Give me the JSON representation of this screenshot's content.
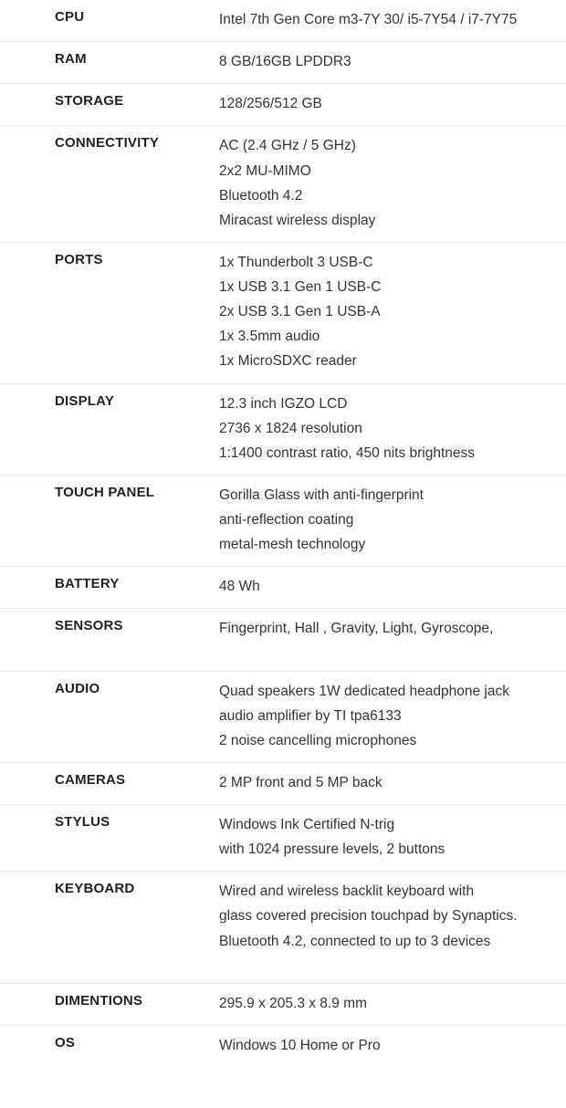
{
  "specs": [
    {
      "label": "CPU",
      "value": "Intel 7th Gen Core m3-7Y 30/ i5-7Y54 / i7-7Y75"
    },
    {
      "label": "RAM",
      "value": "8 GB/16GB LPDDR3"
    },
    {
      "label": "STORAGE",
      "value": "128/256/512 GB"
    },
    {
      "label": "CONNECTIVITY",
      "value": "AC (2.4 GHz / 5 GHz)\n2x2  MU-MIMO\nBluetooth 4.2\nMiracast wireless display"
    },
    {
      "label": "PORTS",
      "value": "1x Thunderbolt 3 USB-C\n1x USB 3.1 Gen 1 USB-C\n2x USB 3.1 Gen 1 USB-A\n1x 3.5mm audio\n1x MicroSDXC reader"
    },
    {
      "label": "DISPLAY",
      "value": "12.3 inch IGZO LCD\n2736 x 1824 resolution\n1:1400 contrast ratio, 450 nits brightness"
    },
    {
      "label": "TOUCH PANEL",
      "value": "Gorilla Glass with anti-fingerprint\nanti-reflection coating\nmetal-mesh technology"
    },
    {
      "label": "BATTERY",
      "value": "48 Wh"
    },
    {
      "label": "SENSORS",
      "value": "Fingerprint, Hall , Gravity, Light, Gyroscope,",
      "extraBottom": true
    },
    {
      "label": "AUDIO",
      "value": "Quad speakers 1W dedicated headphone jack\naudio amplifier by TI tpa6133\n2  noise cancelling microphones"
    },
    {
      "label": "CAMERAS",
      "value": "2 MP front and 5 MP back"
    },
    {
      "label": "STYLUS",
      "value": "Windows Ink Certified N-trig\nwith 1024 pressure levels, 2 buttons"
    },
    {
      "label": "KEYBOARD",
      "value": "Wired and wireless backlit keyboard with\nglass covered precision touchpad  by Synaptics.\nBluetooth 4.2, connected to up to 3 devices",
      "extraBottom": true
    },
    {
      "label": "DIMENTIONS",
      "value": "295.9 x 205.3  x 8.9 mm"
    },
    {
      "label": "OS",
      "value": "Windows 10 Home or Pro",
      "last": true
    }
  ]
}
